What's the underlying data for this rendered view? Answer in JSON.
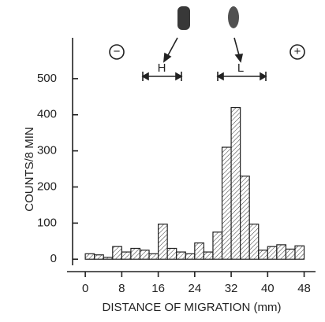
{
  "chart_data": {
    "type": "histogram",
    "xlabel": "DISTANCE OF MIGRATION (mm)",
    "ylabel": "COUNTS/8 MIN",
    "bins": [
      0,
      2,
      4,
      6,
      8,
      10,
      12,
      14,
      16,
      18,
      20,
      22,
      24,
      26,
      28,
      30,
      32,
      34,
      36,
      38,
      40,
      42,
      44,
      46,
      48
    ],
    "values": [
      15,
      12,
      5,
      35,
      20,
      30,
      25,
      15,
      97,
      30,
      20,
      15,
      45,
      20,
      75,
      310,
      420,
      230,
      97,
      25,
      35,
      40,
      28,
      37
    ],
    "color": "#222222",
    "xlim": [
      -4,
      50.5
    ],
    "xticks": [
      0,
      8,
      16,
      24,
      32,
      40,
      48
    ],
    "ylim": [
      -30,
      600
    ],
    "yticks": [
      0,
      100,
      200,
      300,
      400,
      500
    ],
    "annotations": [
      "H",
      "L",
      "−",
      "+"
    ]
  }
}
